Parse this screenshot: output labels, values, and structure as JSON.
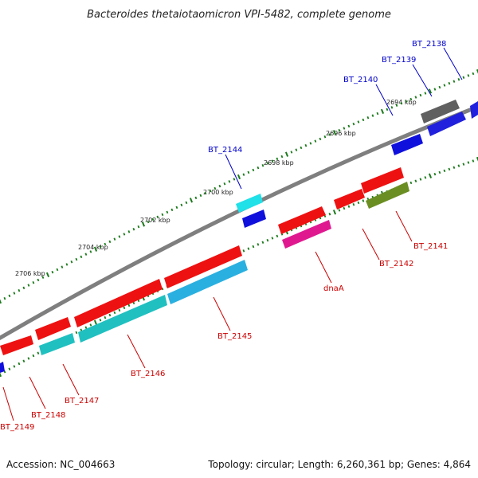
{
  "title": "Bacteroides thetaiotaomicron VPI-5482, complete genome",
  "colors": {
    "backbone": "#7f7f7f",
    "tick": "#1a7a1a",
    "upper_label": "#0000cc",
    "lower_label": "#cc0000"
  },
  "scale_labels": [
    "2694 kbp",
    "2696 kbp",
    "2698 kbp",
    "2700 kbp",
    "2702 kbp",
    "2704 kbp",
    "2706 kbp"
  ],
  "genes_upper": [
    {
      "label": "BT_2138",
      "color": "#2020dd"
    },
    {
      "label": "BT_2139",
      "color": "#606060"
    },
    {
      "label": "BT_2140",
      "color": "#1010dd"
    },
    {
      "label": "BT_2144",
      "color": "#20e0e8"
    }
  ],
  "genes_lower": [
    {
      "label": "BT_2141",
      "color": "#6b8e23"
    },
    {
      "label": "BT_2142",
      "color": "#ee1111"
    },
    {
      "label": "dnaA",
      "color": "#e01890"
    },
    {
      "label": "BT_2145",
      "color": "#2ab0e0"
    },
    {
      "label": "BT_2146",
      "color": "#20c0c0"
    },
    {
      "label": "BT_2147",
      "color": "#20c0c0"
    },
    {
      "label": "BT_2148",
      "color": "#ee1111"
    },
    {
      "label": "BT_2149",
      "color": "#1010dd"
    }
  ],
  "footer": {
    "accession": "Accession: NC_004663",
    "summary": "Topology: circular; Length: 6,260,361 bp; Genes: 4,864"
  }
}
